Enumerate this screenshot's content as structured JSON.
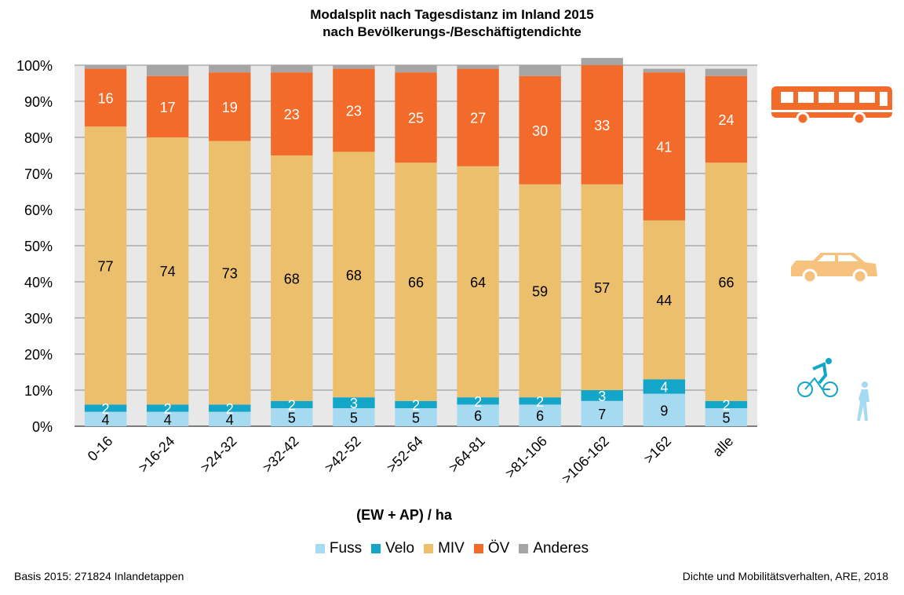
{
  "chart_data": {
    "type": "bar",
    "stacked": true,
    "title": "Modalsplit nach Tagesdistanz im Inland 2015",
    "subtitle": "nach Bevölkerungs-/Beschäftigtendichte",
    "xlabel": "(EW + AP) / ha",
    "ylabel": "",
    "ylim": [
      0,
      100
    ],
    "yticks": [
      "0%",
      "10%",
      "20%",
      "30%",
      "40%",
      "50%",
      "60%",
      "70%",
      "80%",
      "90%",
      "100%"
    ],
    "categories": [
      "0-16",
      ">16-24",
      ">24-32",
      ">32-42",
      ">42-52",
      ">52-64",
      ">64-81",
      ">81-106",
      ">106-162",
      ">162",
      "alle"
    ],
    "series": [
      {
        "name": "Fuss",
        "color": "#a6daf0",
        "values": [
          4,
          4,
          4,
          5,
          5,
          5,
          6,
          6,
          7,
          9,
          5
        ],
        "labels": [
          "4",
          "4",
          "4",
          "5",
          "5",
          "5",
          "6",
          "6",
          "7",
          "9",
          "5"
        ]
      },
      {
        "name": "Velo",
        "color": "#14a6c8",
        "values": [
          2,
          2,
          2,
          2,
          3,
          2,
          2,
          2,
          3,
          4,
          2
        ],
        "labels": [
          "2",
          "2",
          "2",
          "2",
          "3",
          "2",
          "2",
          "2",
          "3",
          "4",
          "2"
        ]
      },
      {
        "name": "MIV",
        "color": "#ebbf6b",
        "values": [
          77,
          74,
          73,
          68,
          68,
          66,
          64,
          59,
          57,
          44,
          66
        ],
        "labels": [
          "77",
          "74",
          "73",
          "68",
          "68",
          "66",
          "64",
          "59",
          "57",
          "44",
          "66"
        ]
      },
      {
        "name": "ÖV",
        "color": "#f26b2a",
        "values": [
          16,
          17,
          19,
          23,
          23,
          25,
          27,
          30,
          33,
          41,
          24
        ],
        "labels": [
          "16",
          "17",
          "19",
          "23",
          "23",
          "25",
          "27",
          "30",
          "33",
          "41",
          "24"
        ]
      },
      {
        "name": "Anderes",
        "color": "#a5a5a5",
        "values": [
          1,
          3,
          2,
          2,
          1,
          2,
          1,
          3,
          2,
          1,
          2
        ],
        "labels": [
          "",
          "",
          "",
          "",
          "",
          "",
          "",
          "",
          "",
          "",
          ""
        ]
      }
    ],
    "legend": [
      "Fuss",
      "Velo",
      "MIV",
      "ÖV",
      "Anderes"
    ],
    "legend_position": "bottom",
    "grid": true
  },
  "footer": {
    "basis": "Basis 2015: 271824 Inlandetappen",
    "source": "Dichte und Mobilitätsverhalten, ARE, 2018"
  },
  "icons": [
    "bus-icon",
    "car-icon",
    "cyclist-icon",
    "pedestrian-icon"
  ]
}
